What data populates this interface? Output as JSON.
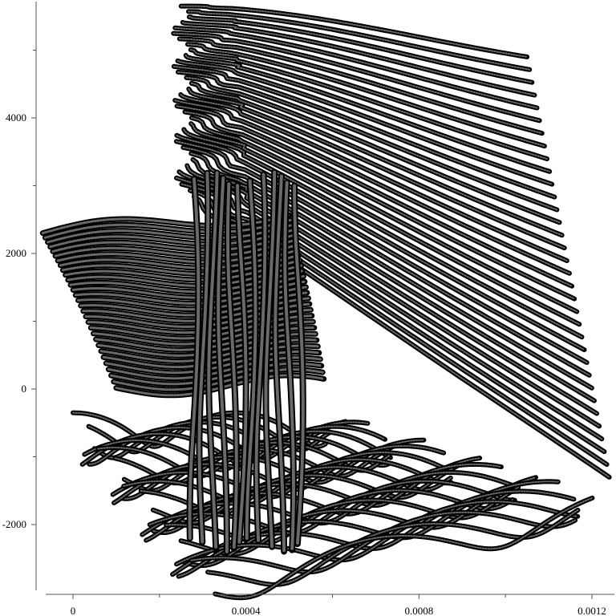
{
  "chart_data": {
    "type": "scatter",
    "title": "",
    "xlabel": "",
    "ylabel": "",
    "xlim": [
      -8e-05,
      0.00125
    ],
    "ylim": [
      -2900,
      5800
    ],
    "grid": false,
    "legend": "none",
    "marker": "open-circle",
    "marker_color": "#000000",
    "x_ticks": [
      {
        "value": 0,
        "label": "0"
      },
      {
        "value": 0.0004,
        "label": "0.0004"
      },
      {
        "value": 0.0008,
        "label": "0.0008"
      },
      {
        "value": 0.0012,
        "label": "0.0012"
      }
    ],
    "x_minor_ticks": [
      0.0002,
      0.0006,
      0.001
    ],
    "y_ticks": [
      {
        "value": -2000,
        "label": "-2000"
      },
      {
        "value": 0,
        "label": "0"
      },
      {
        "value": 2000,
        "label": "2000"
      },
      {
        "value": 4000,
        "label": "4000"
      }
    ],
    "y_minor_ticks": [
      -1000,
      1000,
      3000,
      5000
    ],
    "series_families": [
      {
        "name": "",
        "count": 34,
        "x_start": [
          0.00025,
          0.00026
        ],
        "x_end": [
          0.00105,
          0.00124
        ],
        "y_start": [
          5650,
          2700
        ],
        "y_end": [
          4900,
          -1300
        ],
        "shape": "wavy-top-sweep"
      },
      {
        "name": "",
        "count": 30,
        "x_start": [
          -7e-05,
          0.0001
        ],
        "x_end": [
          0.0005,
          0.00058
        ],
        "y_start": [
          2300,
          0
        ],
        "y_end": [
          2600,
          100
        ],
        "shape": "left-block"
      },
      {
        "name": "",
        "count": 28,
        "x_start": [
          0.0,
          0.0003
        ],
        "x_end": [
          0.0006,
          0.00122
        ],
        "y_start": [
          -600,
          -2950
        ],
        "y_end": [
          -600,
          -1800
        ],
        "shape": "lower-loops"
      }
    ]
  }
}
